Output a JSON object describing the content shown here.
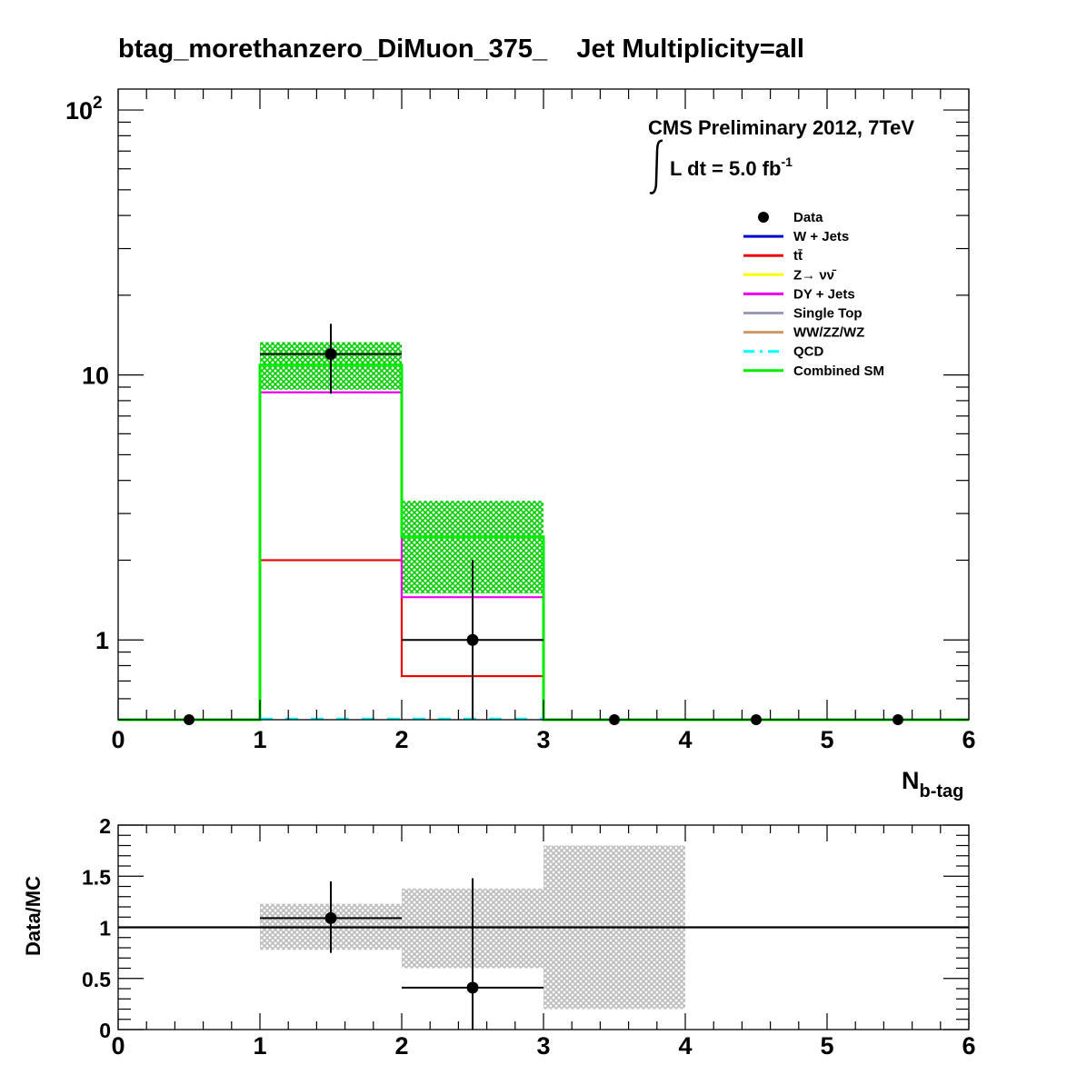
{
  "title": "btag_morethanzero_DiMuon_375_    Jet Multiplicity=all",
  "annotation": {
    "line1": "CMS Preliminary 2012, 7TeV",
    "lumi_prefix": "L dt = 5.0 fb",
    "lumi_exp": "-1"
  },
  "colors": {
    "data": "#000000",
    "wjets": "#0000cc",
    "ttbar": "#ee0000",
    "znunu": "#ffff00",
    "dyjets": "#ee00ee",
    "singletop": "#9999bb",
    "diboson": "#cc9966",
    "qcd": "#00ffff",
    "combined": "#00ee00",
    "uncertainty_main": "#00cc00",
    "uncertainty_ratio": "#bbbbbb"
  },
  "legend": [
    {
      "key": "data",
      "label": "Data",
      "style": "marker"
    },
    {
      "key": "wjets",
      "label": "W + Jets",
      "style": "line"
    },
    {
      "key": "ttbar",
      "label": "tt̄",
      "style": "line"
    },
    {
      "key": "znunu",
      "label": "Z→ νν̄",
      "style": "line"
    },
    {
      "key": "dyjets",
      "label": "DY + Jets",
      "style": "line"
    },
    {
      "key": "singletop",
      "label": "Single Top",
      "style": "line"
    },
    {
      "key": "diboson",
      "label": "WW/ZZ/WZ",
      "style": "line"
    },
    {
      "key": "qcd",
      "label": "QCD",
      "style": "dashed"
    },
    {
      "key": "combined",
      "label": "Combined SM",
      "style": "line"
    }
  ],
  "chart_data": [
    {
      "type": "histogram",
      "name": "main",
      "x_label": "N_{b-tag}",
      "x_label_main": "N",
      "x_label_sub": "b-tag",
      "xlim": [
        0,
        6
      ],
      "ylim": [
        0.5,
        120
      ],
      "y_scale": "log",
      "x_ticks": [
        0,
        1,
        2,
        3,
        4,
        5,
        6
      ],
      "x_tick_labels": [
        "0",
        "1",
        "2",
        "3",
        "4",
        "5",
        "6"
      ],
      "y_tick_labels": [
        {
          "value": 1,
          "label": "1"
        },
        {
          "value": 10,
          "label": "10"
        },
        {
          "value": 100,
          "label": "10",
          "exp": "2"
        }
      ],
      "bin_edges": [
        0,
        1,
        2,
        3,
        4,
        5,
        6
      ],
      "series": [
        {
          "key": "ttbar",
          "values": [
            0,
            2.0,
            0.73,
            0,
            0,
            0
          ]
        },
        {
          "key": "dyjets",
          "values": [
            0,
            8.6,
            1.45,
            0,
            0,
            0
          ]
        },
        {
          "key": "combined",
          "values": [
            0,
            10.9,
            2.45,
            0,
            0,
            0
          ]
        }
      ],
      "uncertainty_band": {
        "low": [
          0,
          8.8,
          1.5,
          0,
          0,
          0
        ],
        "high": [
          0,
          13.3,
          3.35,
          0,
          0,
          0
        ]
      },
      "data_points": [
        {
          "x": 0.5,
          "y": 0
        },
        {
          "x": 1.5,
          "y": 12,
          "yerr_low": 3.5,
          "yerr_high": 3.6
        },
        {
          "x": 2.5,
          "y": 1,
          "yerr_low": 0.83,
          "yerr_high": 1.0
        },
        {
          "x": 3.5,
          "y": 0
        },
        {
          "x": 4.5,
          "y": 0
        },
        {
          "x": 5.5,
          "y": 0
        }
      ]
    },
    {
      "type": "ratio",
      "name": "ratio",
      "y_label": "Data/MC",
      "xlim": [
        0,
        6
      ],
      "ylim": [
        0,
        2
      ],
      "x_ticks": [
        0,
        1,
        2,
        3,
        4,
        5,
        6
      ],
      "x_tick_labels": [
        "0",
        "1",
        "2",
        "3",
        "4",
        "5",
        "6"
      ],
      "y_ticks": [
        0,
        0.5,
        1,
        1.5,
        2
      ],
      "y_tick_labels": [
        "0",
        "0.5",
        "1",
        "1.5",
        "2"
      ],
      "reference_line": 1,
      "uncertainty_band": [
        {
          "xlo": 1,
          "xhi": 2,
          "low": 0.78,
          "high": 1.23
        },
        {
          "xlo": 2,
          "xhi": 3,
          "low": 0.6,
          "high": 1.38
        },
        {
          "xlo": 3,
          "xhi": 4,
          "low": 0.2,
          "high": 1.8
        }
      ],
      "data_points": [
        {
          "x": 1.5,
          "y": 1.09,
          "yerr_low": 0.34,
          "yerr_high": 0.36
        },
        {
          "x": 2.5,
          "y": 0.41,
          "yerr_low": 0.41,
          "yerr_high": 1.07
        }
      ]
    }
  ]
}
